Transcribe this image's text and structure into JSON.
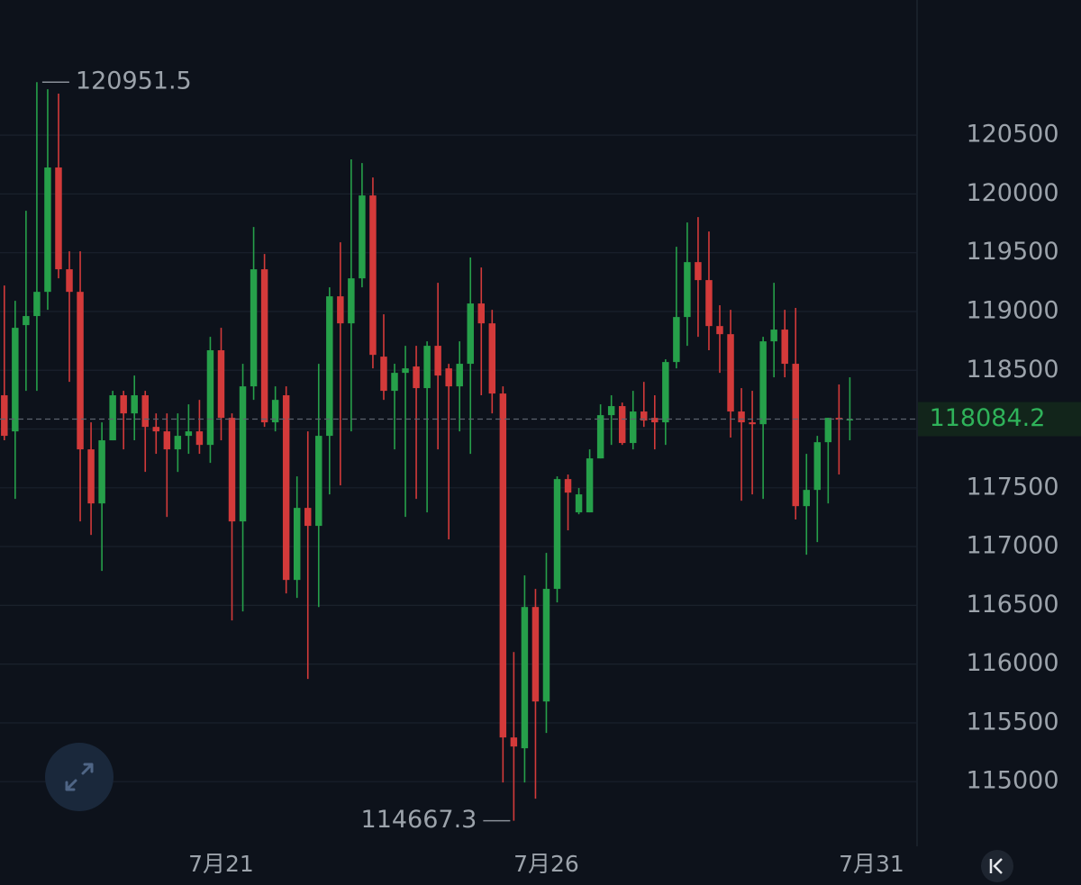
{
  "chart_data": {
    "type": "candlestick",
    "x": [
      0,
      1,
      2,
      3,
      4,
      5,
      6,
      7,
      8,
      9,
      10,
      11,
      12,
      13,
      14,
      15,
      16,
      17,
      18,
      19,
      20,
      21,
      22,
      23,
      24,
      25,
      26,
      27,
      28,
      29,
      30,
      31,
      32,
      33,
      34,
      35,
      36,
      37,
      38,
      39,
      40,
      41,
      42,
      43,
      44,
      45,
      46,
      47,
      48,
      49,
      50,
      51,
      52,
      53,
      54,
      55,
      56,
      57,
      58,
      59,
      60,
      61,
      62,
      63,
      64,
      65,
      66,
      67,
      68,
      69,
      70,
      71,
      72,
      73,
      74,
      75,
      76,
      77,
      78
    ],
    "open": [
      118287,
      117980,
      118884,
      118961,
      119167,
      120225,
      119359,
      119167,
      117827,
      117367,
      117904,
      118287,
      118133,
      118287,
      118018,
      117980,
      117827,
      117942,
      117980,
      117865,
      118670,
      118095,
      117214,
      118363,
      119359,
      118057,
      118287,
      116716,
      117329,
      117176,
      117942,
      119129,
      118899,
      119282,
      119987,
      118616,
      118325,
      118478,
      118532,
      118348,
      118708,
      118516,
      118363,
      118555,
      119068,
      118899,
      118302,
      115376,
      115284,
      116486,
      115682,
      116640,
      117574,
      117291,
      117291,
      117750,
      118118,
      118195,
      117881,
      118149,
      118095,
      118057,
      118570,
      118953,
      119420,
      119267,
      118876,
      118807,
      118149,
      118057,
      118041,
      118746,
      118846,
      118555,
      117344,
      117482,
      117888,
      118095,
      118080
    ],
    "high": [
      119221,
      119091,
      119857,
      120951.5,
      120891,
      120853,
      119512,
      119512,
      118057,
      118057,
      118325,
      118325,
      118455,
      118325,
      118133,
      118133,
      118133,
      118210,
      118248,
      118784,
      118861,
      118133,
      118555,
      119719,
      119489,
      118363,
      118363,
      117597,
      117980,
      118555,
      119206,
      119589,
      120294,
      120263,
      120140,
      118976,
      118555,
      118708,
      118708,
      118746,
      119244,
      118555,
      118746,
      119459,
      119374,
      119014,
      118363,
      116103,
      116755,
      116640,
      116946,
      117597,
      117613,
      117498,
      117827,
      118210,
      118287,
      118225,
      118325,
      118401,
      118287,
      118593,
      119550,
      119757,
      119803,
      119681,
      119053,
      119014,
      118348,
      118325,
      118784,
      119244,
      119014,
      119030,
      117789,
      117942,
      118095,
      118379,
      118440
    ],
    "low": [
      117904,
      117406,
      118325,
      118325,
      119014,
      119282,
      118401,
      117214,
      117099,
      116793,
      117904,
      117827,
      117904,
      117635,
      117789,
      117252,
      117635,
      117789,
      117789,
      117712,
      117904,
      116372,
      116448,
      118248,
      118018,
      117980,
      116601,
      116563,
      115874,
      116486,
      117444,
      117521,
      117980,
      119206,
      118516,
      118248,
      117827,
      117252,
      117406,
      117291,
      117827,
      117061,
      117980,
      117789,
      118287,
      118133,
      114993,
      114667.3,
      114993,
      114855,
      115414,
      116525,
      117138,
      117275,
      117291,
      117750,
      117865,
      117865,
      117827,
      118018,
      117827,
      117865,
      118516,
      118708,
      118784,
      118670,
      118478,
      117927,
      117390,
      117444,
      117406,
      118440,
      118440,
      117230,
      116931,
      117038,
      117367,
      117613,
      117904
    ],
    "close": [
      117942,
      118861,
      118961,
      119167,
      120225,
      119359,
      119167,
      117827,
      117367,
      117904,
      118287,
      118133,
      118287,
      118018,
      117980,
      117827,
      117942,
      117980,
      117865,
      118670,
      118095,
      117214,
      118363,
      119359,
      118057,
      118248,
      116716,
      117329,
      117176,
      117942,
      119129,
      118899,
      119282,
      119987,
      118631,
      118325,
      118478,
      118516,
      118348,
      118708,
      118455,
      118363,
      118555,
      119068,
      118899,
      118302,
      115376,
      115299,
      116486,
      115682,
      116640,
      117574,
      117459,
      117444,
      117750,
      118118,
      118195,
      117881,
      118149,
      118072,
      118057,
      118570,
      118953,
      119420,
      119267,
      118876,
      118807,
      118149,
      118057,
      118041,
      118746,
      118846,
      118555,
      117344,
      117482,
      117888,
      118095,
      118080,
      118084.2
    ],
    "up_color": "#26a04a",
    "down_color": "#d33a3a",
    "xlim": [
      -0.4,
      84.2
    ],
    "xticks": [
      {
        "value": 20,
        "label": "7月21"
      },
      {
        "value": 50,
        "label": "7月26"
      },
      {
        "value": 80,
        "label": "7月31"
      }
    ],
    "ylim": [
      114450,
      121650
    ],
    "yticks": [
      115000,
      115500,
      116000,
      116500,
      117000,
      117500,
      118000,
      118500,
      119000,
      119500,
      120000,
      120500
    ],
    "grid": true,
    "last_price_line": true
  }
}
